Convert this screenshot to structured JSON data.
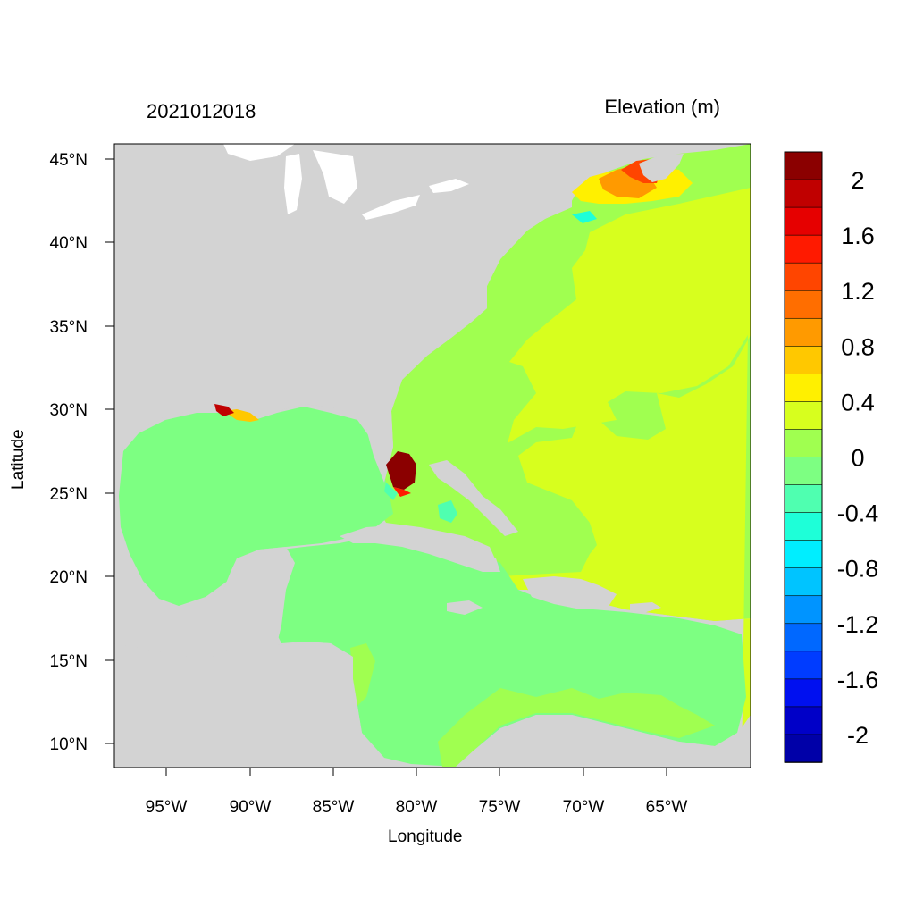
{
  "title_left": "2021012018",
  "title_right": "Elevation (m)",
  "x_axis_title": "Longitude",
  "y_axis_title": "Latitude",
  "lon_ticks": [
    "95°W",
    "90°W",
    "85°W",
    "80°W",
    "75°W",
    "70°W",
    "65°W"
  ],
  "lat_ticks": [
    "45°N",
    "40°N",
    "35°N",
    "30°N",
    "25°N",
    "20°N",
    "15°N",
    "10°N"
  ],
  "colorbar": {
    "colors": [
      "#8b0000",
      "#c00000",
      "#e60000",
      "#ff1a00",
      "#ff4500",
      "#ff6e00",
      "#ff9a00",
      "#ffc800",
      "#fff000",
      "#d7ff1e",
      "#a0ff50",
      "#7dff82",
      "#4fffb0",
      "#1effd8",
      "#00eeff",
      "#00c4ff",
      "#0094ff",
      "#0068ff",
      "#003cff",
      "#0010f0",
      "#0000c8",
      "#0000a8"
    ],
    "labels": [
      "2",
      "1.6",
      "1.2",
      "0.8",
      "0.4",
      "0",
      "-0.4",
      "-0.8",
      "-1.2",
      "-1.6",
      "-2"
    ]
  },
  "colors": {
    "land": "#d3d3d3",
    "gulf_caribbean": "#7dff82",
    "atlantic": "#a0ff50",
    "atlantic_high": "#d7ff1e",
    "lake": "#ffffff"
  }
}
